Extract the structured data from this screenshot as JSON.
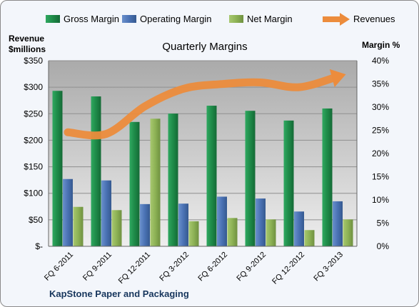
{
  "chart_data": {
    "type": "bar",
    "title": "Quarterly Margins",
    "company": "KapStone Paper and Packaging",
    "left_axis_label_line1": "Revenue",
    "left_axis_label_line2": "$millions",
    "right_axis_label": "Margin %",
    "categories": [
      "FQ 6-2011",
      "FQ 9-2011",
      "FQ 12-2011",
      "FQ 3-2012",
      "FQ 6-2012",
      "FQ 9-2012",
      "FQ 12-2012",
      "FQ 3-2013"
    ],
    "ylim_left": [
      0,
      350
    ],
    "ylim_right": [
      0,
      0.4
    ],
    "left_ticks": [
      0,
      50,
      100,
      150,
      200,
      250,
      300,
      350
    ],
    "left_tick_labels": [
      "$-",
      "$50",
      "$100",
      "$150",
      "$200",
      "$250",
      "$300",
      "$350"
    ],
    "right_ticks": [
      0,
      0.05,
      0.1,
      0.15,
      0.2,
      0.25,
      0.3,
      0.35,
      0.4
    ],
    "right_tick_labels": [
      "0%",
      "5%",
      "10%",
      "15%",
      "20%",
      "25%",
      "30%",
      "35%",
      "40%"
    ],
    "grid": true,
    "legend_placement": "top",
    "series": [
      {
        "name": "Gross Margin",
        "axis": "right",
        "kind": "bar",
        "color": "#1e8a48",
        "values": [
          0.335,
          0.323,
          0.268,
          0.286,
          0.303,
          0.292,
          0.271,
          0.297
        ]
      },
      {
        "name": "Operating Margin",
        "axis": "right",
        "kind": "bar",
        "color": "#4a72b4",
        "values": [
          0.145,
          0.142,
          0.091,
          0.092,
          0.107,
          0.103,
          0.075,
          0.097
        ]
      },
      {
        "name": "Net Margin",
        "axis": "right",
        "kind": "bar",
        "color": "#8db255",
        "values": [
          0.085,
          0.078,
          0.275,
          0.054,
          0.061,
          0.058,
          0.035,
          0.058
        ]
      },
      {
        "name": "Revenues",
        "axis": "left",
        "kind": "line",
        "color": "#ec8c3c",
        "values": [
          215,
          212,
          264,
          297,
          306,
          309,
          300,
          320
        ]
      }
    ]
  }
}
